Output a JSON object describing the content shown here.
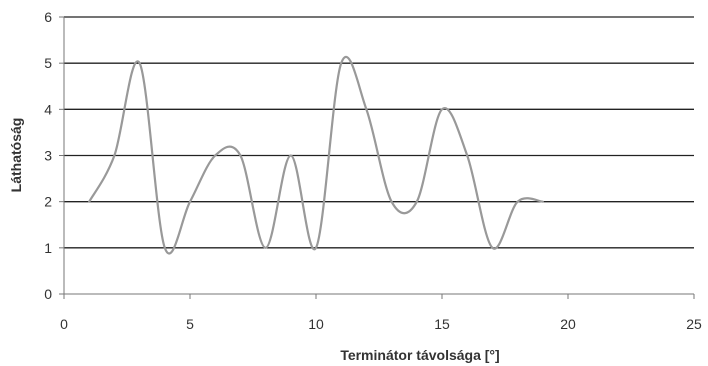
{
  "chart_data": {
    "type": "line",
    "title": "",
    "xlabel": "Terminátor távolsága [°]",
    "ylabel": "Láthatóság",
    "xlim": [
      0,
      25
    ],
    "ylim": [
      0,
      6
    ],
    "x_ticks": [
      0,
      5,
      10,
      15,
      20,
      25
    ],
    "y_ticks": [
      0,
      1,
      2,
      3,
      4,
      5,
      6
    ],
    "grid": "horizontal",
    "legend": "none",
    "smooth": true,
    "series": [
      {
        "x": [
          1,
          2,
          3,
          4,
          5,
          6,
          7,
          8,
          9,
          10,
          11,
          12,
          13,
          14,
          15,
          16,
          17,
          18,
          19
        ],
        "y": [
          2,
          3,
          5,
          1,
          2,
          3,
          3,
          1,
          3,
          1,
          5,
          4,
          2,
          2,
          4,
          3,
          1,
          2,
          2
        ],
        "color": "#999999"
      }
    ],
    "colors": {
      "gridline": "#222222",
      "axis": "#777777",
      "text": "#333333"
    }
  }
}
